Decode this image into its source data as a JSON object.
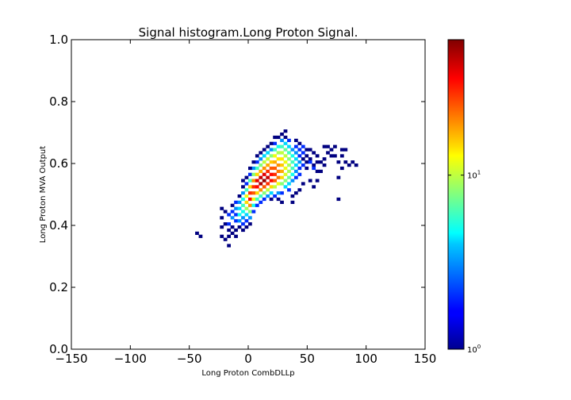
{
  "chart_data": {
    "type": "heatmap",
    "title": "Signal histogram.Long Proton Signal.",
    "xlabel": "Long Proton CombDLLp",
    "ylabel": "Long Proton MVA Output",
    "xlim": [
      -150,
      150
    ],
    "ylim": [
      0.0,
      1.0
    ],
    "x_ticks": [
      {
        "value": -150,
        "label": "−150"
      },
      {
        "value": -100,
        "label": "−100"
      },
      {
        "value": -50,
        "label": "−50"
      },
      {
        "value": 0,
        "label": "0"
      },
      {
        "value": 50,
        "label": "50"
      },
      {
        "value": 100,
        "label": "100"
      },
      {
        "value": 150,
        "label": "150"
      }
    ],
    "y_ticks": [
      {
        "value": 0.0,
        "label": "0.0"
      },
      {
        "value": 0.2,
        "label": "0.2"
      },
      {
        "value": 0.4,
        "label": "0.4"
      },
      {
        "value": 0.6,
        "label": "0.6"
      },
      {
        "value": 0.8,
        "label": "0.8"
      },
      {
        "value": 1.0,
        "label": "1.0"
      }
    ],
    "bin_width_x": 3.0,
    "bin_height_y": 0.01,
    "colorbar": {
      "scale": "log",
      "colormap": "jet",
      "range": [
        1,
        60
      ],
      "ticks": [
        {
          "value": 1,
          "label_base": "10",
          "label_exp": "0"
        },
        {
          "value": 10,
          "label_base": "10",
          "label_exp": "1"
        }
      ]
    },
    "grid": false,
    "bins": [
      [
        -43.5,
        0.375,
        1
      ],
      [
        -40.5,
        0.365,
        1
      ],
      [
        -22.5,
        0.455,
        1
      ],
      [
        -22.5,
        0.425,
        1
      ],
      [
        -22.5,
        0.395,
        1
      ],
      [
        -22.5,
        0.365,
        1
      ],
      [
        -19.5,
        0.445,
        1
      ],
      [
        -19.5,
        0.405,
        1
      ],
      [
        -19.5,
        0.355,
        1
      ],
      [
        -16.5,
        0.335,
        1
      ],
      [
        -16.5,
        0.435,
        2
      ],
      [
        -16.5,
        0.405,
        2
      ],
      [
        -16.5,
        0.385,
        1
      ],
      [
        -13.5,
        0.465,
        1
      ],
      [
        -13.5,
        0.445,
        2
      ],
      [
        -13.5,
        0.425,
        3
      ],
      [
        -13.5,
        0.395,
        1
      ],
      [
        -13.5,
        0.375,
        1
      ],
      [
        -10.5,
        0.475,
        2
      ],
      [
        -10.5,
        0.455,
        3
      ],
      [
        -10.5,
        0.435,
        2
      ],
      [
        -10.5,
        0.415,
        2
      ],
      [
        -10.5,
        0.385,
        1
      ],
      [
        -7.5,
        0.495,
        1
      ],
      [
        -7.5,
        0.475,
        3
      ],
      [
        -7.5,
        0.455,
        4
      ],
      [
        -7.5,
        0.435,
        5
      ],
      [
        -7.5,
        0.415,
        3
      ],
      [
        -7.5,
        0.395,
        1
      ],
      [
        -4.5,
        0.525,
        1
      ],
      [
        -4.5,
        0.505,
        3
      ],
      [
        -4.5,
        0.485,
        5
      ],
      [
        -4.5,
        0.465,
        6
      ],
      [
        -4.5,
        0.445,
        5
      ],
      [
        -4.5,
        0.425,
        3
      ],
      [
        -4.5,
        0.405,
        2
      ],
      [
        -1.5,
        0.535,
        2
      ],
      [
        -1.5,
        0.515,
        6
      ],
      [
        -1.5,
        0.495,
        12
      ],
      [
        -1.5,
        0.475,
        15
      ],
      [
        -1.5,
        0.455,
        9
      ],
      [
        -1.5,
        0.435,
        4
      ],
      [
        -1.5,
        0.415,
        2
      ],
      [
        1.5,
        0.565,
        2
      ],
      [
        1.5,
        0.545,
        6
      ],
      [
        1.5,
        0.525,
        15
      ],
      [
        1.5,
        0.505,
        30
      ],
      [
        1.5,
        0.485,
        35
      ],
      [
        1.5,
        0.465,
        20
      ],
      [
        1.5,
        0.445,
        8
      ],
      [
        1.5,
        0.425,
        3
      ],
      [
        4.5,
        0.585,
        3
      ],
      [
        4.5,
        0.565,
        8
      ],
      [
        4.5,
        0.545,
        20
      ],
      [
        4.5,
        0.525,
        30
      ],
      [
        4.5,
        0.505,
        25
      ],
      [
        4.5,
        0.485,
        12
      ],
      [
        4.5,
        0.465,
        5
      ],
      [
        7.5,
        0.605,
        2
      ],
      [
        7.5,
        0.585,
        6
      ],
      [
        7.5,
        0.565,
        15
      ],
      [
        7.5,
        0.545,
        40
      ],
      [
        7.5,
        0.525,
        35
      ],
      [
        7.5,
        0.505,
        15
      ],
      [
        7.5,
        0.485,
        6
      ],
      [
        10.5,
        0.615,
        3
      ],
      [
        10.5,
        0.595,
        8
      ],
      [
        10.5,
        0.575,
        18
      ],
      [
        10.5,
        0.555,
        45
      ],
      [
        10.5,
        0.535,
        50
      ],
      [
        10.5,
        0.515,
        20
      ],
      [
        10.5,
        0.495,
        6
      ],
      [
        13.5,
        0.625,
        4
      ],
      [
        13.5,
        0.605,
        10
      ],
      [
        13.5,
        0.585,
        20
      ],
      [
        13.5,
        0.565,
        40
      ],
      [
        13.5,
        0.545,
        55
      ],
      [
        13.5,
        0.525,
        25
      ],
      [
        13.5,
        0.505,
        8
      ],
      [
        16.5,
        0.635,
        4
      ],
      [
        16.5,
        0.615,
        10
      ],
      [
        16.5,
        0.595,
        18
      ],
      [
        16.5,
        0.575,
        30
      ],
      [
        16.5,
        0.555,
        45
      ],
      [
        16.5,
        0.535,
        30
      ],
      [
        16.5,
        0.515,
        10
      ],
      [
        19.5,
        0.645,
        3
      ],
      [
        19.5,
        0.625,
        8
      ],
      [
        19.5,
        0.605,
        16
      ],
      [
        19.5,
        0.585,
        25
      ],
      [
        19.5,
        0.565,
        35
      ],
      [
        19.5,
        0.545,
        35
      ],
      [
        19.5,
        0.525,
        15
      ],
      [
        19.5,
        0.505,
        4
      ],
      [
        22.5,
        0.665,
        2
      ],
      [
        22.5,
        0.645,
        6
      ],
      [
        22.5,
        0.625,
        12
      ],
      [
        22.5,
        0.605,
        18
      ],
      [
        22.5,
        0.585,
        25
      ],
      [
        22.5,
        0.565,
        30
      ],
      [
        22.5,
        0.545,
        25
      ],
      [
        22.5,
        0.525,
        10
      ],
      [
        25.5,
        0.655,
        5
      ],
      [
        25.5,
        0.635,
        9
      ],
      [
        25.5,
        0.615,
        14
      ],
      [
        25.5,
        0.595,
        20
      ],
      [
        25.5,
        0.575,
        22
      ],
      [
        25.5,
        0.555,
        22
      ],
      [
        25.5,
        0.535,
        12
      ],
      [
        28.5,
        0.675,
        3
      ],
      [
        28.5,
        0.655,
        6
      ],
      [
        28.5,
        0.635,
        10
      ],
      [
        28.5,
        0.615,
        14
      ],
      [
        28.5,
        0.595,
        16
      ],
      [
        28.5,
        0.575,
        18
      ],
      [
        28.5,
        0.555,
        15
      ],
      [
        28.5,
        0.535,
        8
      ],
      [
        31.5,
        0.665,
        4
      ],
      [
        31.5,
        0.645,
        7
      ],
      [
        31.5,
        0.625,
        10
      ],
      [
        31.5,
        0.605,
        12
      ],
      [
        31.5,
        0.585,
        12
      ],
      [
        31.5,
        0.565,
        11
      ],
      [
        31.5,
        0.545,
        8
      ],
      [
        31.5,
        0.525,
        4
      ],
      [
        34.5,
        0.655,
        4
      ],
      [
        34.5,
        0.635,
        6
      ],
      [
        34.5,
        0.615,
        8
      ],
      [
        34.5,
        0.595,
        9
      ],
      [
        34.5,
        0.575,
        9
      ],
      [
        34.5,
        0.555,
        7
      ],
      [
        34.5,
        0.535,
        4
      ],
      [
        37.5,
        0.645,
        3
      ],
      [
        37.5,
        0.625,
        5
      ],
      [
        37.5,
        0.605,
        6
      ],
      [
        37.5,
        0.585,
        6
      ],
      [
        37.5,
        0.565,
        5
      ],
      [
        37.5,
        0.545,
        3
      ],
      [
        40.5,
        0.655,
        2
      ],
      [
        40.5,
        0.635,
        3
      ],
      [
        40.5,
        0.615,
        4
      ],
      [
        40.5,
        0.595,
        4
      ],
      [
        40.5,
        0.575,
        3
      ],
      [
        40.5,
        0.555,
        2
      ],
      [
        43.5,
        0.645,
        2
      ],
      [
        43.5,
        0.625,
        2
      ],
      [
        43.5,
        0.605,
        3
      ],
      [
        43.5,
        0.585,
        2
      ],
      [
        43.5,
        0.565,
        2
      ],
      [
        46.5,
        0.635,
        2
      ],
      [
        46.5,
        0.615,
        1
      ],
      [
        46.5,
        0.595,
        2
      ],
      [
        49.5,
        0.625,
        1
      ],
      [
        49.5,
        0.605,
        1
      ],
      [
        49.5,
        0.585,
        1
      ],
      [
        52.5,
        0.645,
        1
      ],
      [
        52.5,
        0.615,
        1
      ],
      [
        55.5,
        0.635,
        1
      ],
      [
        55.5,
        0.595,
        1
      ],
      [
        58.5,
        0.625,
        1
      ],
      [
        58.5,
        0.575,
        1
      ],
      [
        61.5,
        0.605,
        1
      ],
      [
        64.5,
        0.655,
        1
      ],
      [
        64.5,
        0.615,
        1
      ],
      [
        67.5,
        0.635,
        1
      ],
      [
        70.5,
        0.625,
        1
      ],
      [
        73.5,
        0.625,
        1
      ],
      [
        76.5,
        0.605,
        1
      ],
      [
        76.5,
        0.555,
        1
      ],
      [
        79.5,
        0.585,
        1
      ],
      [
        79.5,
        0.625,
        1
      ],
      [
        82.5,
        0.605,
        1
      ],
      [
        85.5,
        0.595,
        1
      ],
      [
        88.5,
        0.605,
        1
      ],
      [
        76.5,
        0.485,
        1
      ],
      [
        52.5,
        0.545,
        1
      ],
      [
        55.5,
        0.525,
        1
      ],
      [
        58.5,
        0.545,
        1
      ],
      [
        46.5,
        0.535,
        1
      ],
      [
        43.5,
        0.515,
        1
      ],
      [
        40.5,
        0.505,
        1
      ],
      [
        37.5,
        0.495,
        1
      ],
      [
        34.5,
        0.515,
        2
      ],
      [
        28.5,
        0.505,
        2
      ],
      [
        25.5,
        0.505,
        3
      ],
      [
        22.5,
        0.495,
        2
      ],
      [
        19.5,
        0.485,
        1
      ],
      [
        25.5,
        0.485,
        1
      ],
      [
        28.5,
        0.475,
        1
      ],
      [
        37.5,
        0.475,
        1
      ],
      [
        16.5,
        0.495,
        3
      ],
      [
        13.5,
        0.485,
        2
      ],
      [
        10.5,
        0.475,
        2
      ],
      [
        7.5,
        0.465,
        2
      ],
      [
        4.5,
        0.445,
        2
      ],
      [
        1.5,
        0.405,
        1
      ],
      [
        -1.5,
        0.395,
        1
      ],
      [
        -4.5,
        0.385,
        1
      ],
      [
        -10.5,
        0.365,
        1
      ],
      [
        -16.5,
        0.365,
        1
      ],
      [
        55.5,
        0.585,
        2
      ],
      [
        52.5,
        0.605,
        2
      ],
      [
        49.5,
        0.645,
        1
      ],
      [
        46.5,
        0.655,
        2
      ],
      [
        43.5,
        0.665,
        1
      ],
      [
        40.5,
        0.675,
        1
      ],
      [
        34.5,
        0.675,
        2
      ],
      [
        31.5,
        0.685,
        1
      ],
      [
        25.5,
        0.685,
        1
      ],
      [
        22.5,
        0.685,
        1
      ],
      [
        16.5,
        0.655,
        1
      ],
      [
        13.5,
        0.645,
        1
      ],
      [
        10.5,
        0.635,
        1
      ],
      [
        7.5,
        0.625,
        1
      ],
      [
        4.5,
        0.605,
        1
      ],
      [
        1.5,
        0.585,
        1
      ],
      [
        -1.5,
        0.555,
        1
      ],
      [
        -4.5,
        0.545,
        1
      ],
      [
        19.5,
        0.665,
        1
      ],
      [
        28.5,
        0.695,
        1
      ],
      [
        31.5,
        0.705,
        1
      ],
      [
        58.5,
        0.605,
        1
      ],
      [
        61.5,
        0.575,
        1
      ],
      [
        64.5,
        0.595,
        1
      ],
      [
        67.5,
        0.655,
        1
      ],
      [
        70.5,
        0.645,
        1
      ],
      [
        73.5,
        0.655,
        1
      ],
      [
        79.5,
        0.645,
        1
      ],
      [
        82.5,
        0.645,
        1
      ],
      [
        91.5,
        0.595,
        1
      ]
    ]
  }
}
